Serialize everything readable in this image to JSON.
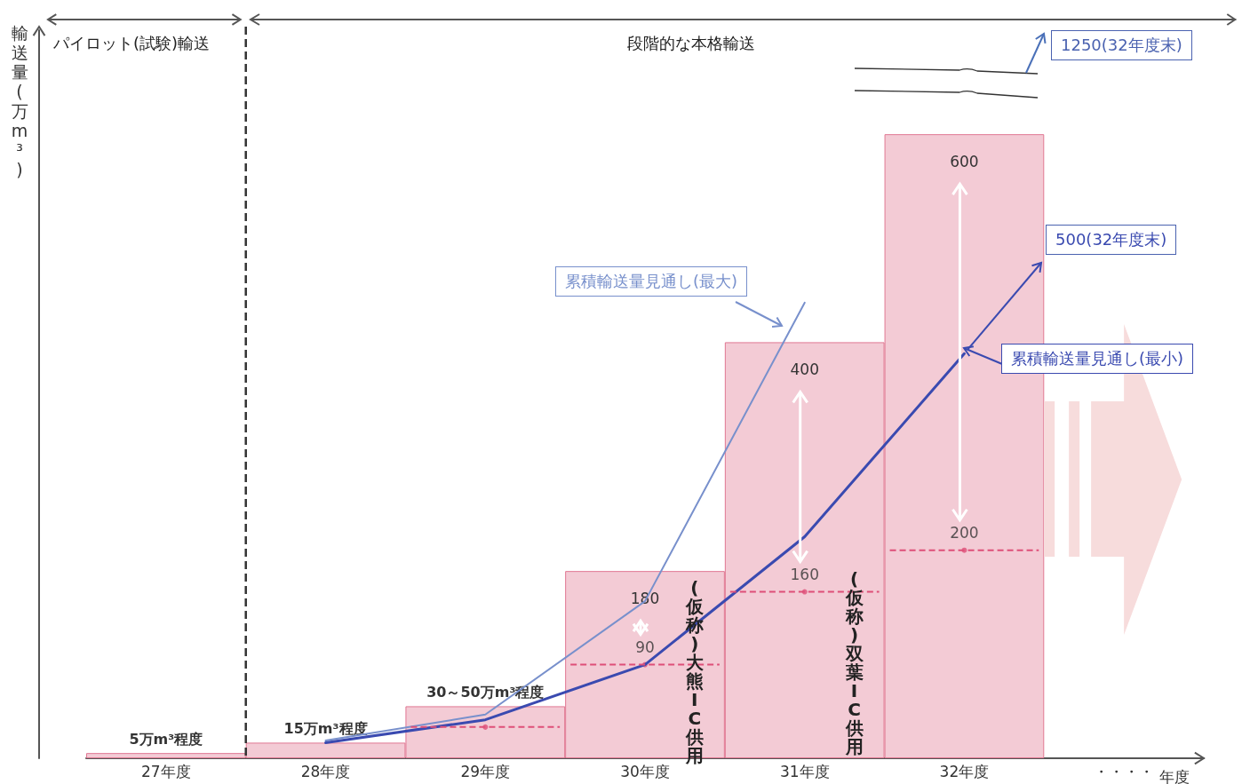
{
  "chart_data": {
    "type": "bar",
    "ylabel": "輸送量(万m³)",
    "xlabel": "年度",
    "categories": [
      "27年度",
      "28年度",
      "29年度",
      "30年度",
      "31年度",
      "32年度",
      "・・・・"
    ],
    "marker": "none",
    "series": [
      {
        "color": "#f3cbd5",
        "values": [
          5,
          15,
          50,
          180,
          400,
          600,
          null
        ],
        "value_labels": [
          "5万m³程度",
          "15万m³程度",
          "30～50万m³程度",
          "180",
          "400",
          "600",
          null
        ]
      },
      {
        "type": "scatter",
        "marker": "circle",
        "color": "#de4f78",
        "values": [
          null,
          null,
          30,
          90,
          160,
          200,
          null
        ],
        "value_labels": [
          null,
          null,
          null,
          "90",
          "160",
          "200",
          null
        ]
      },
      {
        "type": "line",
        "name": "累積輸送量見通し(最大)",
        "color": "#7890cc",
        "values": [
          null,
          17,
          42,
          151,
          438,
          null,
          null
        ]
      },
      {
        "type": "line",
        "name": "累積輸送量見通し(最小)",
        "color": "#3a4ab0",
        "values": [
          null,
          15,
          37,
          90,
          213,
          389,
          null
        ]
      }
    ],
    "annotations": [
      "パイロット(試験)輸送",
      "段階的な本格輸送",
      "(仮称)大熊IC供用",
      "(仮称)双葉IC供用",
      "1250(32年度末)",
      "500(32年度末)"
    ]
  }
}
